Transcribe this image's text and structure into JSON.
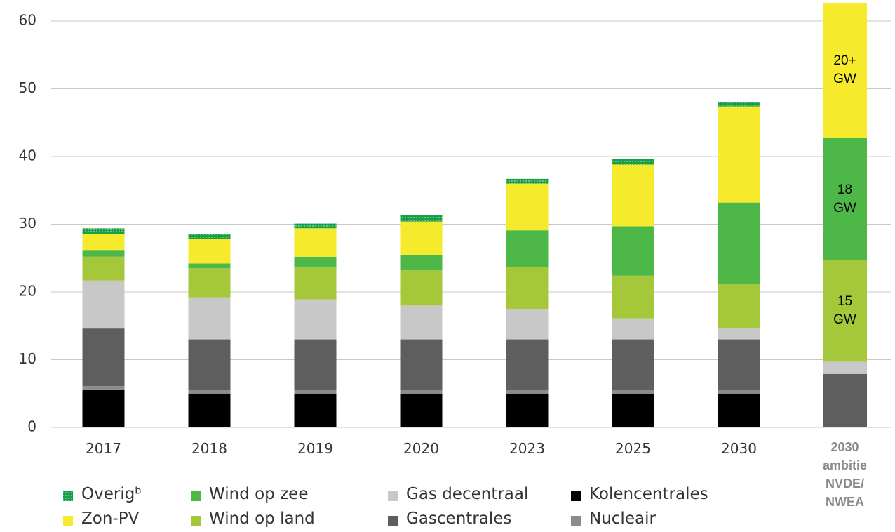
{
  "chart_data": {
    "type": "stacked_bar",
    "categories": [
      "2017",
      "2018",
      "2019",
      "2020",
      "2023",
      "2025",
      "2030",
      "2030 ambitie NVDE/ NWEA"
    ],
    "series": [
      {
        "name": "Kolencentrales",
        "color": "#000000",
        "values": [
          5.6,
          5.0,
          5.0,
          5.0,
          5.0,
          5.0,
          5.0,
          0
        ]
      },
      {
        "name": "Nucleair",
        "color": "#8c8c8c",
        "values": [
          0.5,
          0.5,
          0.5,
          0.5,
          0.5,
          0.5,
          0.5,
          0
        ]
      },
      {
        "name": "Gascentrales",
        "color": "#5e5e5e",
        "values": [
          8.5,
          7.5,
          7.5,
          7.5,
          7.5,
          7.5,
          7.5,
          7.9
        ]
      },
      {
        "name": "Gas decentraal",
        "color": "#c8c8c8",
        "values": [
          7.1,
          6.2,
          5.9,
          5.0,
          4.5,
          3.1,
          1.6,
          1.8
        ]
      },
      {
        "name": "Wind op land",
        "color": "#a5c83a",
        "values": [
          3.5,
          4.3,
          4.7,
          5.2,
          6.2,
          6.3,
          6.6,
          15
        ],
        "value_labels": [
          null,
          null,
          null,
          null,
          null,
          null,
          null,
          "15 GW"
        ]
      },
      {
        "name": "Wind op zee",
        "color": "#4db848",
        "values": [
          1.0,
          0.7,
          1.6,
          2.3,
          5.4,
          7.3,
          12.0,
          18
        ],
        "value_labels": [
          null,
          null,
          null,
          null,
          null,
          null,
          null,
          "18 GW"
        ]
      },
      {
        "name": "Zon-PV",
        "color": "#f5ea2b",
        "values": [
          2.4,
          3.6,
          4.2,
          4.9,
          6.9,
          9.1,
          14.2,
          20
        ],
        "value_labels": [
          null,
          null,
          null,
          null,
          null,
          null,
          null,
          "20+ GW"
        ]
      },
      {
        "name": "Overigᵇ",
        "color": "#1a9e48",
        "pattern": "dotted",
        "values": [
          0.8,
          0.7,
          0.7,
          0.9,
          0.7,
          0.8,
          0.6,
          0
        ]
      }
    ],
    "ylim": [
      0,
      63
    ],
    "yticks": [
      0,
      10,
      20,
      30,
      40,
      50,
      60
    ],
    "grid": true
  }
}
